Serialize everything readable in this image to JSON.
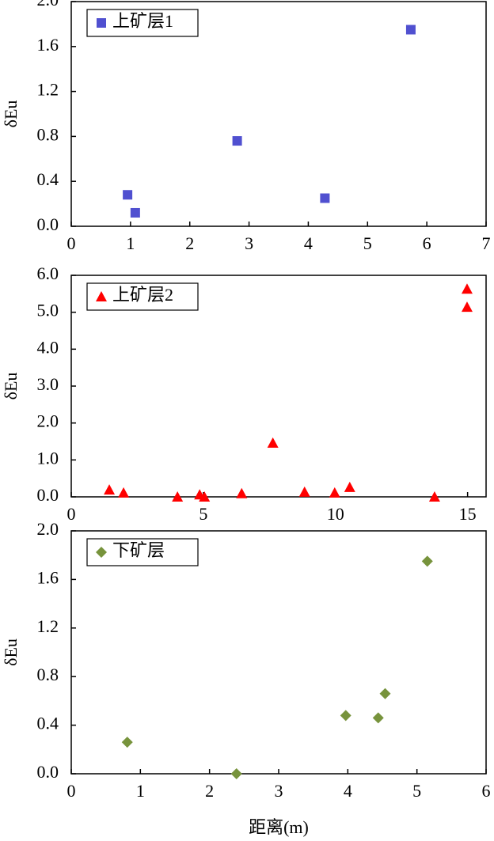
{
  "chart_data": [
    {
      "type": "scatter",
      "y_label": "δEu",
      "xlim": [
        0,
        7
      ],
      "xticks": [
        0,
        1,
        2,
        3,
        4,
        5,
        6,
        7
      ],
      "ylim": [
        0,
        2
      ],
      "yticks": [
        {
          "value": 0,
          "label": "0.0"
        },
        {
          "value": 0.4,
          "label": "0.4"
        },
        {
          "value": 0.8,
          "label": "0.8"
        },
        {
          "value": 1.2,
          "label": "1.2"
        },
        {
          "value": 1.6,
          "label": "1.6"
        },
        {
          "value": 2.0,
          "label": "2.0"
        }
      ],
      "series": [
        {
          "name": "上矿层1",
          "color": "#5050d0",
          "marker": "square",
          "x": [
            0.95,
            1.08,
            2.8,
            4.28,
            5.73
          ],
          "values": [
            0.28,
            0.12,
            0.76,
            0.25,
            1.75
          ]
        }
      ]
    },
    {
      "type": "scatter",
      "y_label": "δEu",
      "xlim": [
        0,
        15.7
      ],
      "xticks": [
        0,
        5,
        10,
        15
      ],
      "ylim": [
        0,
        6
      ],
      "yticks": [
        {
          "value": 0,
          "label": "0.0"
        },
        {
          "value": 1,
          "label": "1.0"
        },
        {
          "value": 2,
          "label": "2.0"
        },
        {
          "value": 3,
          "label": "3.0"
        },
        {
          "value": 4,
          "label": "4.0"
        },
        {
          "value": 5,
          "label": "5.0"
        },
        {
          "value": 6,
          "label": "6.0"
        }
      ],
      "series": [
        {
          "name": "上矿层2",
          "color": "#ff0000",
          "marker": "triangle",
          "x": [
            1.44,
            1.98,
            4.02,
            4.86,
            5.04,
            6.45,
            7.63,
            8.83,
            9.97,
            10.54,
            13.75,
            14.98,
            14.98
          ],
          "values": [
            0.19,
            0.11,
            0.0,
            0.06,
            0.0,
            0.09,
            1.46,
            0.13,
            0.11,
            0.26,
            0.0,
            5.63,
            5.14
          ]
        }
      ]
    },
    {
      "type": "scatter",
      "y_label": "δEu",
      "x_label": "距离(m)",
      "xlim": [
        0,
        6
      ],
      "xticks": [
        0,
        1,
        2,
        3,
        4,
        5,
        6
      ],
      "ylim": [
        0,
        2
      ],
      "yticks": [
        {
          "value": 0,
          "label": "0.0"
        },
        {
          "value": 0.4,
          "label": "0.4"
        },
        {
          "value": 0.8,
          "label": "0.8"
        },
        {
          "value": 1.2,
          "label": "1.2"
        },
        {
          "value": 1.6,
          "label": "1.6"
        },
        {
          "value": 2.0,
          "label": "2.0"
        }
      ],
      "series": [
        {
          "name": "下矿层",
          "color": "#77933c",
          "marker": "diamond",
          "x": [
            0.81,
            2.39,
            3.97,
            4.44,
            4.54,
            5.15
          ],
          "values": [
            0.26,
            0.0,
            0.48,
            0.46,
            0.66,
            1.75
          ]
        }
      ]
    }
  ]
}
